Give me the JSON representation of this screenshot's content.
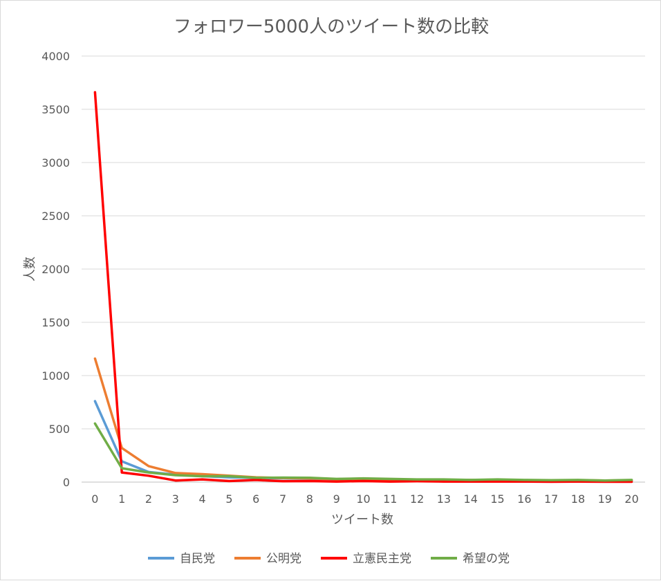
{
  "chart_data": {
    "type": "line",
    "title": "フォロワー5000人のツイート数の比較",
    "xlabel": "ツイート数",
    "ylabel": "人数",
    "x": [
      0,
      1,
      2,
      3,
      4,
      5,
      6,
      7,
      8,
      9,
      10,
      11,
      12,
      13,
      14,
      15,
      16,
      17,
      18,
      19,
      20
    ],
    "ylim": [
      0,
      4000
    ],
    "yticks": [
      0,
      500,
      1000,
      1500,
      2000,
      2500,
      3000,
      3500,
      4000
    ],
    "grid": true,
    "legend_position": "bottom",
    "series": [
      {
        "name": "自民党",
        "color": "#5b9bd5",
        "values": [
          760,
          195,
          95,
          70,
          55,
          45,
          40,
          35,
          32,
          28,
          30,
          25,
          22,
          20,
          20,
          22,
          18,
          15,
          15,
          14,
          14
        ]
      },
      {
        "name": "公明党",
        "color": "#ed7d31",
        "values": [
          1160,
          320,
          150,
          85,
          75,
          60,
          45,
          38,
          35,
          28,
          30,
          25,
          22,
          22,
          20,
          22,
          18,
          15,
          18,
          14,
          16
        ]
      },
      {
        "name": "立憲民主党",
        "color": "#ff0000",
        "values": [
          3660,
          90,
          60,
          15,
          25,
          10,
          20,
          8,
          10,
          5,
          10,
          5,
          8,
          5,
          5,
          5,
          5,
          3,
          5,
          3,
          3
        ]
      },
      {
        "name": "希望の党",
        "color": "#70ad47",
        "values": [
          550,
          130,
          90,
          65,
          55,
          55,
          40,
          42,
          40,
          30,
          35,
          30,
          25,
          25,
          20,
          25,
          20,
          18,
          20,
          15,
          20
        ]
      }
    ]
  }
}
